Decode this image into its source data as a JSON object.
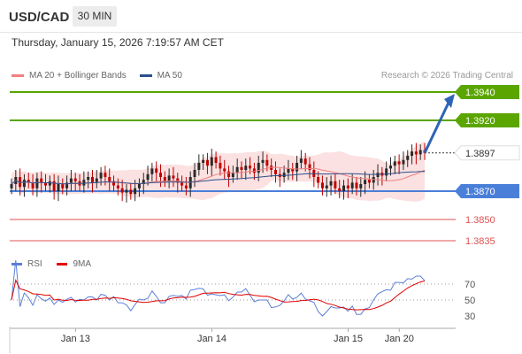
{
  "header": {
    "symbol": "USD/CAD",
    "timeframe": "30 MIN"
  },
  "datetime": "Thursday, January 15, 2026 7:19:57 AM CET",
  "legend_main": [
    {
      "label": "MA 20 + Bollinger Bands",
      "color": "#f08080"
    },
    {
      "label": "MA 50",
      "color": "#2c4f8c"
    }
  ],
  "credit": "Research © 2026 Trading Central",
  "legend_rsi": [
    {
      "label": "RSI",
      "color": "#5b7fd6"
    },
    {
      "label": "9MA",
      "color": "#e00000"
    }
  ],
  "colors": {
    "resistance": "#5aa500",
    "support": "#4a7fd9",
    "lower": "#e05050",
    "bull": "#2a2a2a",
    "bear": "#c00000",
    "band": "#fbe1e1",
    "arrow": "#2f64b5"
  },
  "chart_data": [
    {
      "type": "candlestick",
      "title": "USD/CAD",
      "ylim": [
        1.3825,
        1.3948
      ],
      "levels": [
        {
          "value": "1.3940",
          "kind": "resistance"
        },
        {
          "value": "1.3920",
          "kind": "resistance"
        },
        {
          "value": "1.3897",
          "kind": "current"
        },
        {
          "value": "1.3870",
          "kind": "support"
        },
        {
          "value": "1.3850",
          "kind": "support"
        },
        {
          "value": "1.3835",
          "kind": "support"
        }
      ],
      "close": [
        1.3875,
        1.388,
        1.3873,
        1.3878,
        1.3876,
        1.3872,
        1.3879,
        1.3876,
        1.3874,
        1.3877,
        1.387,
        1.3875,
        1.3872,
        1.3876,
        1.3879,
        1.3877,
        1.3874,
        1.3878,
        1.388,
        1.3876,
        1.3879,
        1.3883,
        1.388,
        1.3877,
        1.3874,
        1.3872,
        1.3869,
        1.3871,
        1.3868,
        1.3872,
        1.3875,
        1.3878,
        1.3882,
        1.3886,
        1.3883,
        1.388,
        1.3877,
        1.3881,
        1.3879,
        1.3876,
        1.3874,
        1.3872,
        1.388,
        1.3885,
        1.389,
        1.3892,
        1.3888,
        1.3894,
        1.389,
        1.3886,
        1.3884,
        1.388,
        1.3883,
        1.3887,
        1.3885,
        1.3888,
        1.3886,
        1.3883,
        1.389,
        1.3892,
        1.3888,
        1.3885,
        1.3882,
        1.388,
        1.3883,
        1.3886,
        1.3884,
        1.389,
        1.3893,
        1.3889,
        1.3885,
        1.388,
        1.3876,
        1.3872,
        1.3874,
        1.3877,
        1.3872,
        1.387,
        1.3874,
        1.3872,
        1.3876,
        1.3872,
        1.3875,
        1.3878,
        1.3876,
        1.388,
        1.3883,
        1.3881,
        1.3886,
        1.3888,
        1.3891,
        1.3889,
        1.3892,
        1.3895,
        1.3898,
        1.3896,
        1.3899,
        1.3897
      ],
      "rsi_levels": [
        70,
        50,
        30
      ],
      "x_labels": [
        {
          "label": "Jan 13",
          "index": 14
        },
        {
          "label": "Jan 14",
          "index": 46
        },
        {
          "label": "Jan 15",
          "index": 78
        },
        {
          "label": "Jan 20",
          "index": 90
        }
      ],
      "forecast_target": 1.394
    }
  ]
}
